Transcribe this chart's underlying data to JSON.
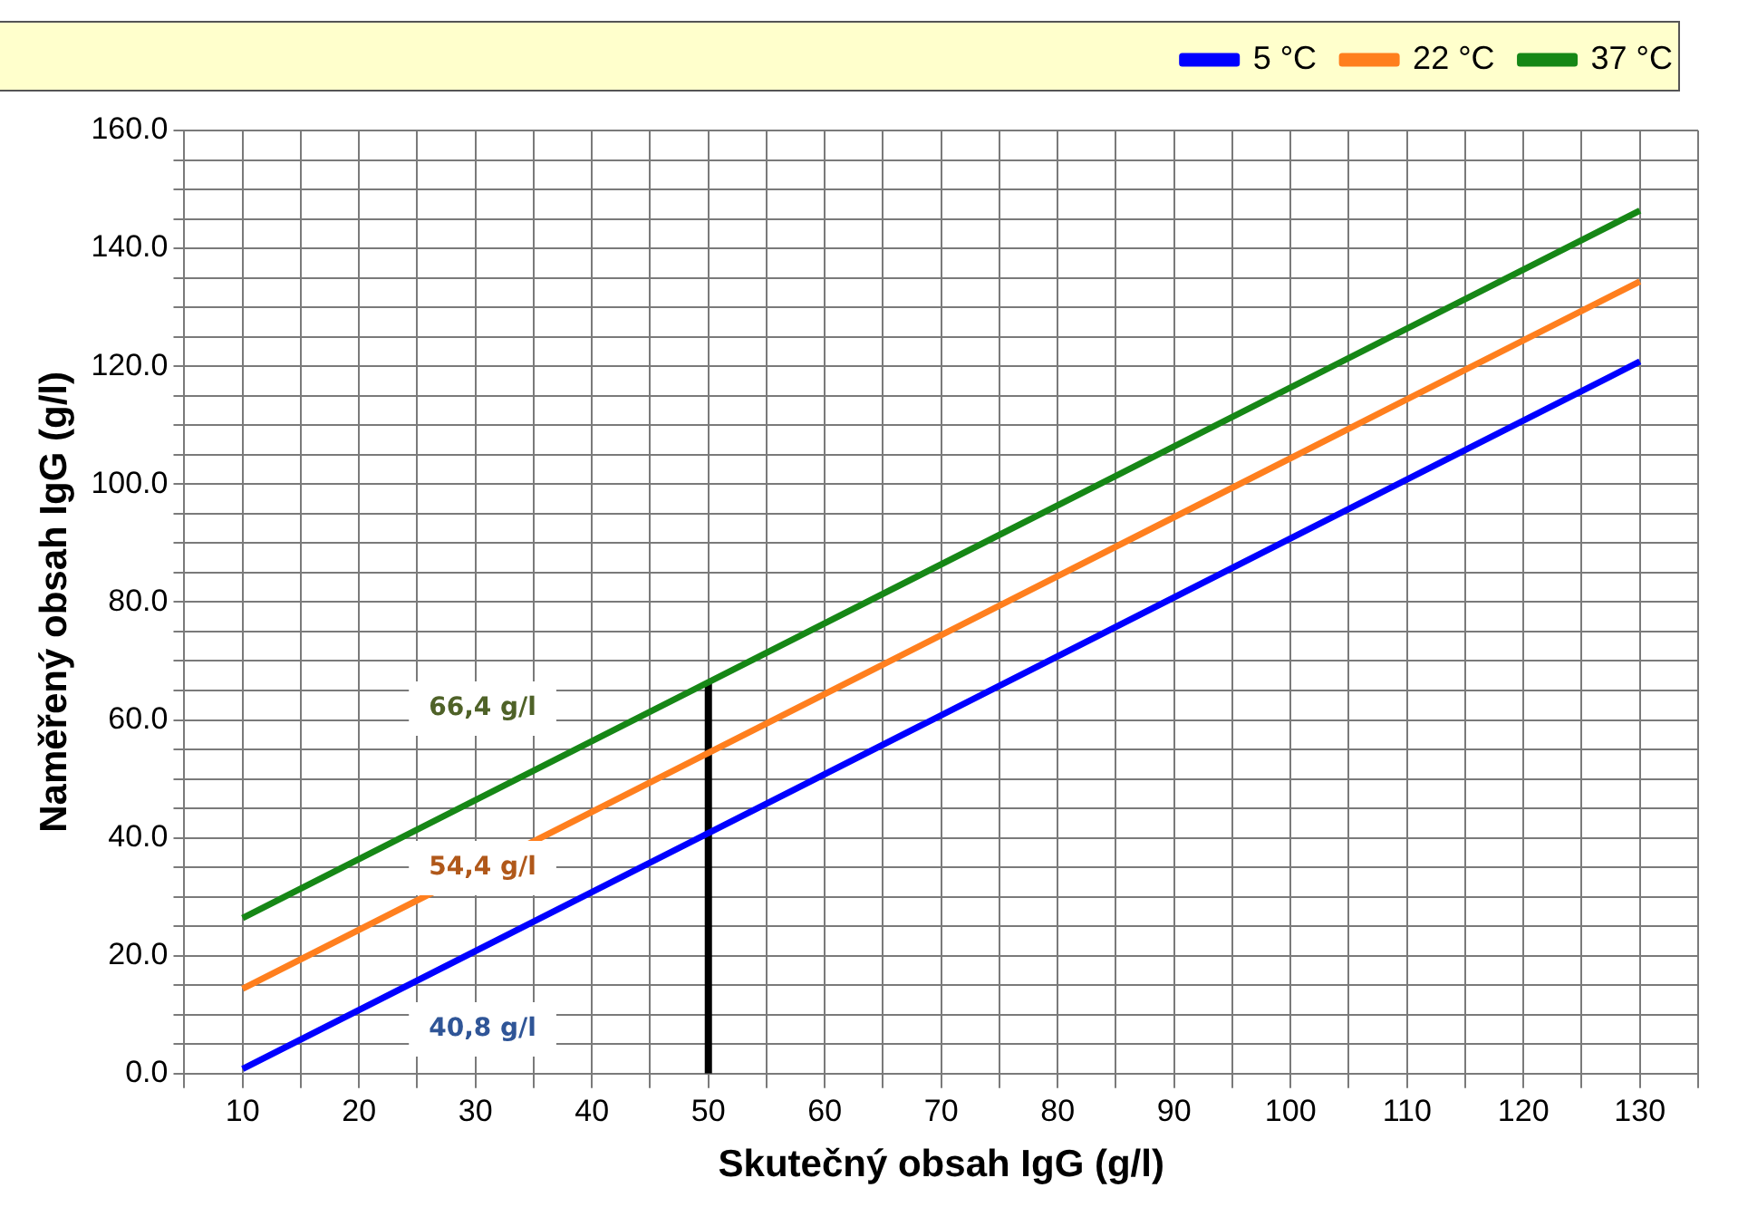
{
  "chart_data": {
    "type": "line",
    "xlabel": "Skutečný obsah IgG (g/l)",
    "ylabel": "Naměřený obsah IgG (g/l)",
    "x": [
      10,
      50,
      130
    ],
    "series": [
      {
        "name": "5 °C",
        "color": "#0000ff",
        "values": [
          0.8,
          40.8,
          120.8
        ]
      },
      {
        "name": "22 °C",
        "color": "#ff7f1e",
        "values": [
          14.4,
          54.4,
          134.4
        ]
      },
      {
        "name": "37 °C",
        "color": "#168716",
        "values": [
          26.4,
          66.4,
          146.4
        ]
      },
      {
        "color": "#000000",
        "x": [
          50,
          50
        ],
        "values": [
          0,
          66.4
        ]
      }
    ],
    "xlim": [
      5,
      135
    ],
    "xticks": [
      {
        "value": 5,
        "label": null
      },
      10,
      {
        "value": 15,
        "label": null
      },
      20,
      {
        "value": 25,
        "label": null
      },
      30,
      {
        "value": 35,
        "label": null
      },
      40,
      {
        "value": 45,
        "label": null
      },
      50,
      {
        "value": 55,
        "label": null
      },
      60,
      {
        "value": 65,
        "label": null
      },
      70,
      {
        "value": 75,
        "label": null
      },
      80,
      {
        "value": 85,
        "label": null
      },
      90,
      {
        "value": 95,
        "label": null
      },
      100,
      {
        "value": 105,
        "label": null
      },
      110,
      {
        "value": 115,
        "label": null
      },
      120,
      {
        "value": 125,
        "label": null
      },
      130,
      {
        "value": 135,
        "label": null
      }
    ],
    "ylim": [
      0,
      160
    ],
    "yticks": [
      {
        "value": 0,
        "label": "0.0"
      },
      {
        "value": 5,
        "label": null
      },
      {
        "value": 10,
        "label": null
      },
      {
        "value": 15,
        "label": null
      },
      {
        "value": 20,
        "label": "20.0"
      },
      {
        "value": 25,
        "label": null
      },
      {
        "value": 30,
        "label": null
      },
      {
        "value": 35,
        "label": null
      },
      {
        "value": 40,
        "label": "40.0"
      },
      {
        "value": 45,
        "label": null
      },
      {
        "value": 50,
        "label": null
      },
      {
        "value": 55,
        "label": null
      },
      {
        "value": 60,
        "label": "60.0"
      },
      {
        "value": 65,
        "label": null
      },
      {
        "value": 70,
        "label": null
      },
      {
        "value": 75,
        "label": null
      },
      {
        "value": 80,
        "label": "80.0"
      },
      {
        "value": 85,
        "label": null
      },
      {
        "value": 90,
        "label": null
      },
      {
        "value": 95,
        "label": null
      },
      {
        "value": 100,
        "label": "100.0"
      },
      {
        "value": 105,
        "label": null
      },
      {
        "value": 110,
        "label": null
      },
      {
        "value": 115,
        "label": null
      },
      {
        "value": 120,
        "label": "120.0"
      },
      {
        "value": 125,
        "label": null
      },
      {
        "value": 130,
        "label": null
      },
      {
        "value": 135,
        "label": null
      },
      {
        "value": 140,
        "label": "140.0"
      },
      {
        "value": 145,
        "label": null
      },
      {
        "value": 150,
        "label": null
      },
      {
        "value": 155,
        "label": null
      },
      {
        "value": 160,
        "label": "160.0"
      }
    ],
    "annotations": [
      "66,4 g/l",
      "54,4 g/l",
      "40,8 g/l"
    ],
    "grid": true,
    "legend": "top right",
    "marker": "none",
    "line_style": "solid"
  }
}
